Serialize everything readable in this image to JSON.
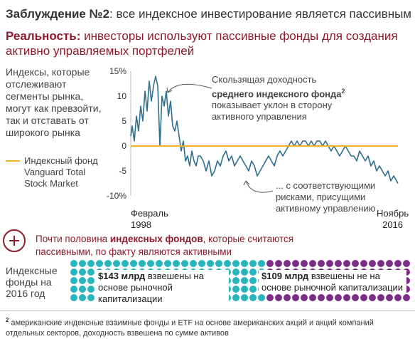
{
  "header": {
    "title_prefix": "Заблуждение №2",
    "title_rest": ": все индексное инвестирование является пассивным",
    "reality_bold": "Реальность:",
    "reality_rest": " инвесторы используют пассивные фонды для создания активно управляемых портфелей"
  },
  "side_text": "Индексы, которые отслеживают сегменты рынка, могут как превзойти, так и отставать от широкого рынка",
  "legend": {
    "label": "Индексный фонд Vanguard Total Stock Market",
    "color": "#f0b323"
  },
  "annotations": {
    "top_line1": "Скользящая доходность",
    "top_bold": "среднего индексного фонда",
    "top_sup": "2",
    "top_line3": "показывает уклон в сторону",
    "top_line4": "активного управления",
    "bottom_line1": "... с соответствующими",
    "bottom_line2": "рисками, присущими",
    "bottom_line3": "активному управлению"
  },
  "x_labels": {
    "start": "Февраль\n1998",
    "end": "Ноябрь\n2016"
  },
  "insight": {
    "pre": "Почти половина ",
    "bold": "индексных фондов",
    "post": ", которые считаются пассивными, по факту являются активными"
  },
  "funds_label": "Индексные фонды на 2016 год",
  "funds": {
    "passive_amount": "$143 млрд",
    "passive_text": " взвешены на основе рыночной капитализации",
    "active_amount": "$109 млрд",
    "active_text": " взвешены не на основе рыночной капитализации",
    "passive_color": "#29b5bd",
    "active_color": "#7c2b86",
    "passive_value": 143,
    "active_value": 109
  },
  "footnote": {
    "sup": "2",
    "text": "американские индексные взаимные фонды и ETF на основе американских акций и акций компаний отдельных секторов, доходность взвешена по сумме активов"
  },
  "chart_data": {
    "type": "line",
    "title": "",
    "xlabel": "",
    "ylabel": "",
    "x_range": [
      "Февраль 1998",
      "Ноябрь 2016"
    ],
    "ylim": [
      -10,
      15
    ],
    "yticks": [
      "15%",
      "10",
      "5",
      "0",
      "-5",
      "-10%"
    ],
    "ytick_values": [
      15,
      10,
      5,
      0,
      -5,
      -10
    ],
    "series": [
      {
        "color": "#2d6e8e",
        "x": [
          1998.1,
          1998.2,
          1998.35,
          1998.5,
          1998.65,
          1998.8,
          1998.95,
          1999.1,
          1999.25,
          1999.4,
          1999.55,
          1999.7,
          1999.85,
          2000.0,
          2000.15,
          2000.3,
          2000.45,
          2000.6,
          2000.75,
          2000.9,
          2001.05,
          2001.2,
          2001.35,
          2001.5,
          2001.65,
          2001.8,
          2001.95,
          2002.1,
          2002.25,
          2002.4,
          2002.55,
          2002.7,
          2002.85,
          2003.0,
          2003.2,
          2003.4,
          2003.6,
          2003.8,
          2004.0,
          2004.2,
          2004.4,
          2004.6,
          2004.8,
          2005.0,
          2005.2,
          2005.4,
          2005.6,
          2005.8,
          2006.0,
          2006.2,
          2006.4,
          2006.6,
          2006.8,
          2007.0,
          2007.2,
          2007.4,
          2007.6,
          2007.8,
          2008.0,
          2008.2,
          2008.4,
          2008.6,
          2008.8,
          2009.0,
          2009.2,
          2009.4,
          2009.6,
          2009.8,
          2010.0,
          2010.2,
          2010.4,
          2010.6,
          2010.8,
          2011.0,
          2011.2,
          2011.4,
          2011.6,
          2011.8,
          2012.0,
          2012.2,
          2012.4,
          2012.6,
          2012.8,
          2013.0,
          2013.2,
          2013.4,
          2013.6,
          2013.8,
          2014.0,
          2014.2,
          2014.4,
          2014.6,
          2014.8,
          2015.0,
          2015.2,
          2015.4,
          2015.6,
          2015.8,
          2016.0,
          2016.2,
          2016.4,
          2016.6,
          2016.8,
          2016.9
        ],
        "y": [
          2,
          4,
          1,
          6,
          3,
          8,
          5,
          11,
          7,
          13,
          9,
          12,
          14,
          12,
          0,
          10,
          8,
          11,
          6,
          9,
          4,
          3,
          5,
          2,
          -1,
          1,
          -3,
          -2,
          -4,
          -1,
          -3,
          -4,
          -2,
          -2,
          -3,
          -5,
          -3,
          -6,
          -5,
          -3,
          -4,
          -2,
          -1,
          -3,
          -2,
          -4,
          -3,
          -2,
          -3,
          -4,
          -5,
          -3,
          -4,
          -6,
          -5,
          -4,
          -3,
          -2,
          -3,
          -4,
          -2,
          -1,
          -2,
          -1,
          0,
          1,
          0,
          1,
          0,
          1,
          1,
          0,
          1,
          0,
          1,
          1,
          0,
          1,
          0,
          -1,
          0,
          -1,
          -2,
          -1,
          0,
          -1,
          -2,
          -2,
          -3,
          -1,
          -2,
          -3,
          -2,
          -4,
          -3,
          -5,
          -4,
          -5,
          -6,
          -5,
          -7,
          -6,
          -7,
          -7.5
        ]
      },
      {
        "color": "#f0b323",
        "x": [
          1998.1,
          2016.9
        ],
        "y": [
          0,
          0
        ]
      }
    ]
  }
}
